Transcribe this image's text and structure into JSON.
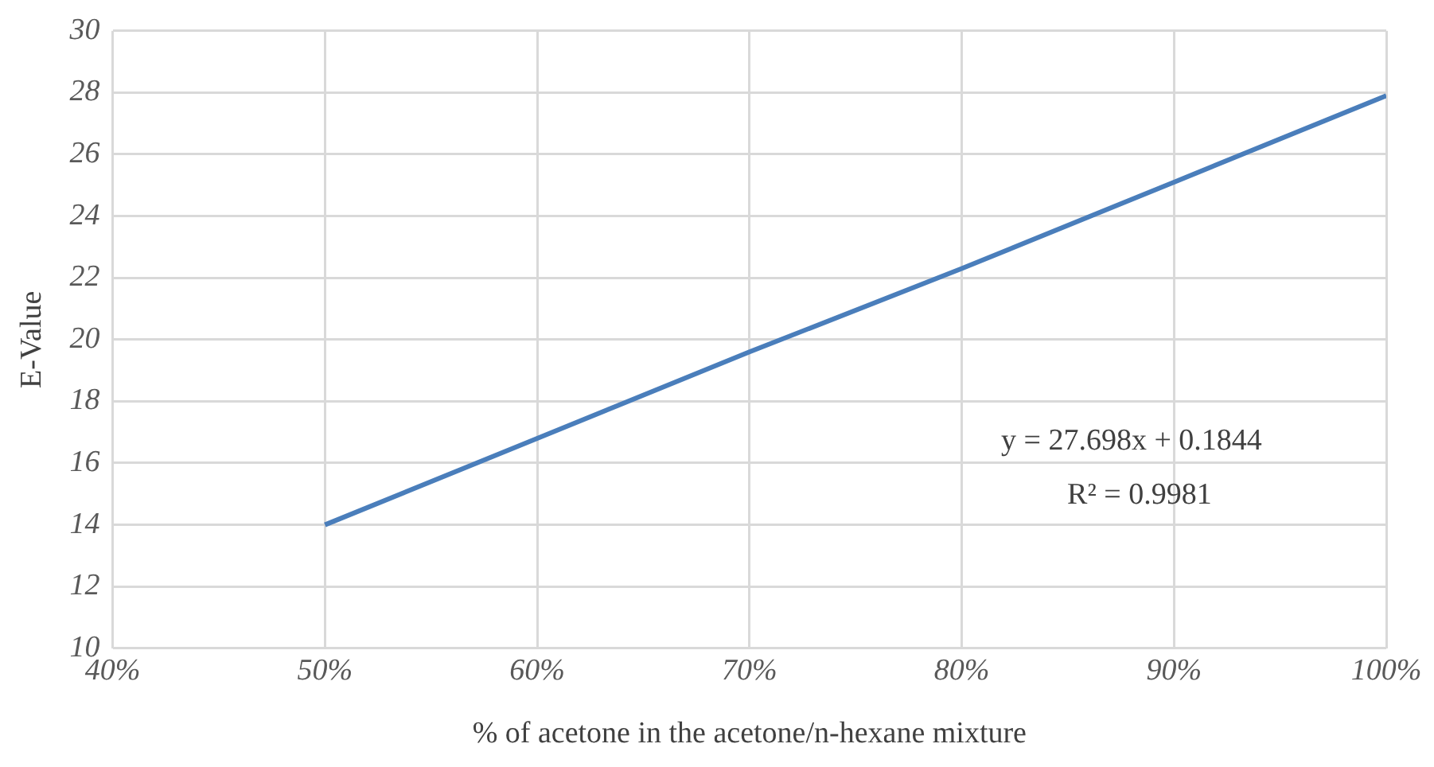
{
  "chart_data": {
    "type": "line",
    "xlabel": "% of acetone in the acetone/n-hexane mixture",
    "ylabel": "E-Value",
    "x": [
      50,
      60,
      70,
      80,
      90,
      100
    ],
    "series": [
      {
        "color": "#4a7ebb",
        "values": [
          14.0,
          16.8,
          19.6,
          22.3,
          25.1,
          27.9
        ]
      }
    ],
    "xlim": [
      40,
      100
    ],
    "xticks": [
      {
        "value": 40,
        "label": "40%"
      },
      {
        "value": 50,
        "label": "50%"
      },
      {
        "value": 60,
        "label": "60%"
      },
      {
        "value": 70,
        "label": "70%"
      },
      {
        "value": 80,
        "label": "80%"
      },
      {
        "value": 90,
        "label": "90%"
      },
      {
        "value": 100,
        "label": "100%"
      }
    ],
    "ylim": [
      10,
      30
    ],
    "yticks": [
      10,
      12,
      14,
      16,
      18,
      20,
      22,
      24,
      26,
      28,
      30
    ],
    "annotations": [
      "y = 27.698x + 0.1844",
      "R² = 0.9981"
    ],
    "grid": true,
    "legend": false,
    "marker": "none",
    "line_style": "solid"
  }
}
